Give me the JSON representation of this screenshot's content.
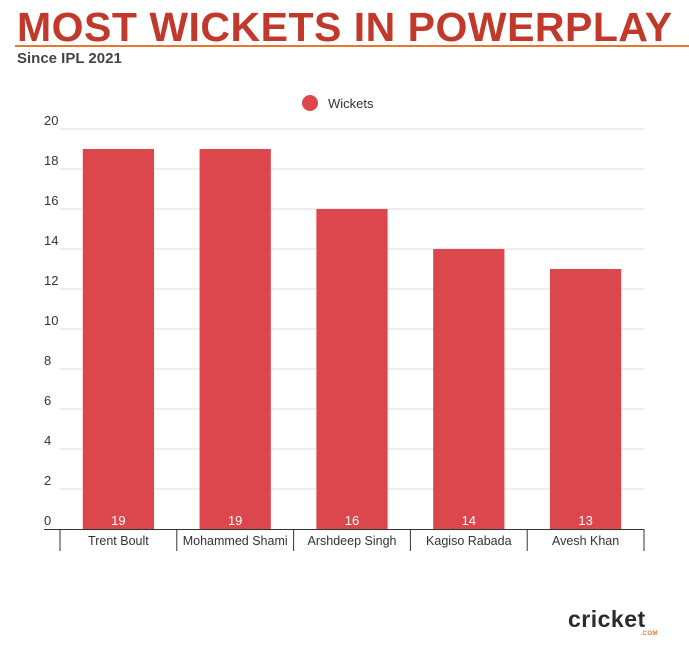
{
  "header": {
    "title": "MOST WICKETS IN POWERPLAY",
    "subtitle": "Since IPL 2021"
  },
  "brand": {
    "logo_text": "cricket",
    "logo_sub": ".COM"
  },
  "colors": {
    "bar": "#db474c",
    "title": "#c0392b",
    "accent": "#e8772e"
  },
  "chart_data": {
    "type": "bar",
    "title": "MOST WICKETS IN POWERPLAY",
    "subtitle": "Since IPL 2021",
    "categories": [
      "Trent Boult",
      "Mohammed Shami",
      "Arshdeep Singh",
      "Kagiso Rabada",
      "Avesh Khan"
    ],
    "series": [
      {
        "name": "Wickets",
        "values": [
          19,
          19,
          16,
          14,
          13
        ]
      }
    ],
    "data_labels": [
      "19",
      "19",
      "16",
      "14",
      "13"
    ],
    "ylim": [
      0,
      20
    ],
    "yticks": [
      0,
      2,
      4,
      6,
      8,
      10,
      12,
      14,
      16,
      18,
      20
    ],
    "grid": true,
    "legend": "top-center"
  }
}
